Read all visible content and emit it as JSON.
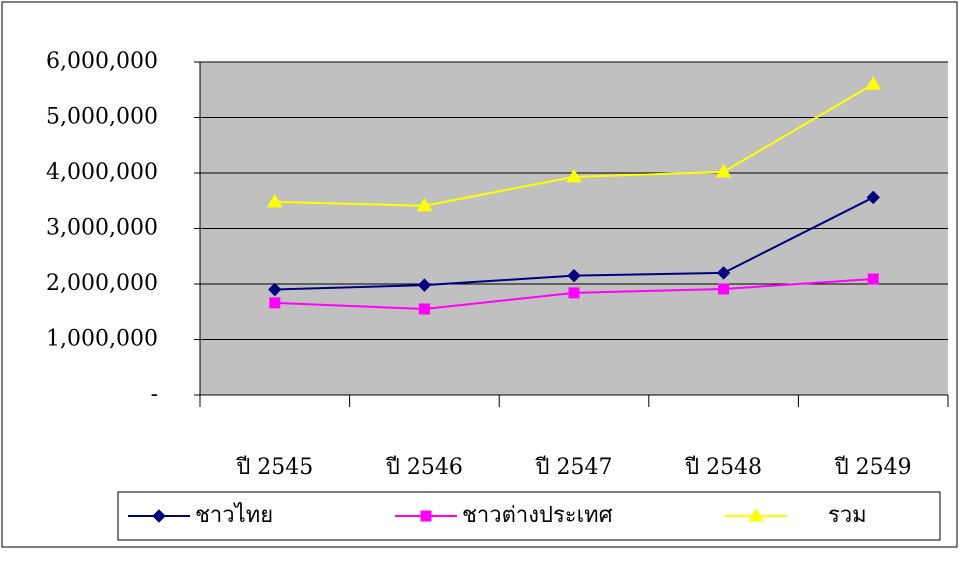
{
  "chart_data": {
    "type": "line",
    "categories": [
      "ปี 2545",
      "ปี 2546",
      "ปี 2547",
      "ปี 2548",
      "ปี 2549"
    ],
    "series": [
      {
        "name": "ชาวไทย",
        "color": "#000080",
        "marker": "diamond",
        "values": [
          1900000,
          1980000,
          2150000,
          2200000,
          3560000
        ]
      },
      {
        "name": "ชาวต่างประเทศ",
        "color": "#ff00ff",
        "marker": "square",
        "values": [
          1660000,
          1550000,
          1840000,
          1910000,
          2090000
        ]
      },
      {
        "name": "รวม",
        "color": "#ffff00",
        "marker": "triangle",
        "values": [
          3480000,
          3410000,
          3930000,
          4020000,
          5600000
        ]
      }
    ],
    "ylim": [
      0,
      6000000
    ],
    "yticks": [
      {
        "value": 0,
        "label": "-"
      },
      {
        "value": 1000000,
        "label": "1,000,000"
      },
      {
        "value": 2000000,
        "label": "2,000,000"
      },
      {
        "value": 3000000,
        "label": "3,000,000"
      },
      {
        "value": 4000000,
        "label": "4,000,000"
      },
      {
        "value": 5000000,
        "label": "5,000,000"
      },
      {
        "value": 6000000,
        "label": "6,000,000"
      }
    ],
    "grid": true,
    "legend": "bottom",
    "plot_background": "#c0c0c0"
  }
}
